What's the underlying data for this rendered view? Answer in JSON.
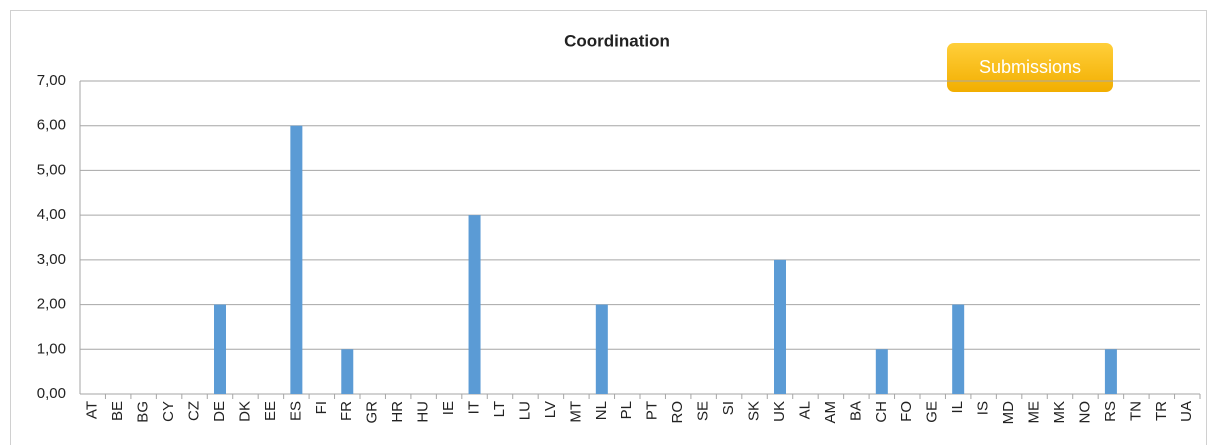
{
  "chart_data": {
    "type": "bar",
    "title": "Coordination",
    "button": "Submissions",
    "categories": [
      "AT",
      "BE",
      "BG",
      "CY",
      "CZ",
      "DE",
      "DK",
      "EE",
      "ES",
      "FI",
      "FR",
      "GR",
      "HR",
      "HU",
      "IE",
      "IT",
      "LT",
      "LU",
      "LV",
      "MT",
      "NL",
      "PL",
      "PT",
      "RO",
      "SE",
      "SI",
      "SK",
      "UK",
      "AL",
      "AM",
      "BA",
      "CH",
      "FO",
      "GE",
      "IL",
      "IS",
      "MD",
      "ME",
      "MK",
      "NO",
      "RS",
      "TN",
      "TR",
      "UA"
    ],
    "values": [
      0,
      0,
      0,
      0,
      0,
      2,
      0,
      0,
      6,
      0,
      1,
      0,
      0,
      0,
      0,
      4,
      0,
      0,
      0,
      0,
      2,
      0,
      0,
      0,
      0,
      0,
      0,
      3,
      0,
      0,
      0,
      1,
      0,
      0,
      2,
      0,
      0,
      0,
      0,
      0,
      1,
      0,
      0,
      0
    ],
    "color": "#5b9bd5",
    "ylim": [
      0,
      7
    ],
    "yticks": [
      {
        "value": 0,
        "label": "0,00"
      },
      {
        "value": 1,
        "label": "1,00"
      },
      {
        "value": 2,
        "label": "2,00"
      },
      {
        "value": 3,
        "label": "3,00"
      },
      {
        "value": 4,
        "label": "4,00"
      },
      {
        "value": 5,
        "label": "5,00"
      },
      {
        "value": 6,
        "label": "6,00"
      },
      {
        "value": 7,
        "label": "7,00"
      }
    ],
    "grid": true
  }
}
